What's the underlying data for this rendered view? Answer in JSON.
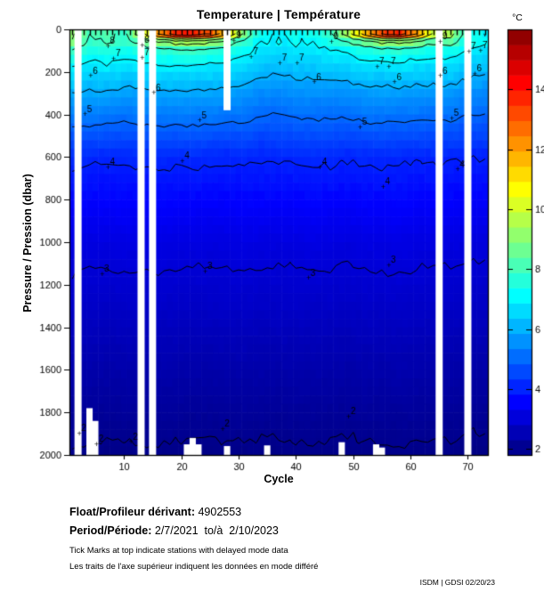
{
  "title": "Temperature | Température",
  "axes": {
    "x": {
      "label": "Cycle",
      "ticks": [
        10,
        20,
        30,
        40,
        50,
        60,
        70
      ],
      "range": [
        0.5,
        73.5
      ]
    },
    "y": {
      "label": "Pressure / Pression (dbar)",
      "ticks": [
        0,
        200,
        400,
        600,
        800,
        1000,
        1200,
        1400,
        1600,
        1800,
        2000
      ],
      "range": [
        0,
        2000
      ],
      "inverted": true
    }
  },
  "colorbar": {
    "unit_label": "°C",
    "ticks": [
      2,
      4,
      6,
      8,
      10,
      12,
      14
    ],
    "domain": [
      1.8,
      16.0
    ],
    "colormap": "jet",
    "blocks": 28
  },
  "footer": {
    "float_label": "Float/Profileur dérivant:",
    "float_value": " 4902553",
    "period_label": "Period/Période:",
    "period_value": " 2/7/2021  to/à  2/10/2023",
    "note_en": "Tick Marks at top indicate stations with delayed mode data",
    "note_fr": "Les traits de l'axe supérieur indiquent les données en mode différé",
    "credit": "ISDM | GDSI 02/20/23"
  },
  "chart_data": {
    "type": "heatmap",
    "title": "Temperature | Température",
    "xlabel": "Cycle",
    "ylabel": "Pressure / Pression (dbar)",
    "x_cycles": [
      1,
      4,
      7,
      10,
      13,
      16,
      19,
      22,
      25,
      28,
      31,
      34,
      37,
      40,
      43,
      46,
      49,
      52,
      55,
      58,
      61,
      64,
      67,
      70,
      73
    ],
    "y_pressures_dbar": [
      0,
      25,
      50,
      75,
      100,
      150,
      200,
      300,
      400,
      600,
      800,
      1000,
      1300,
      1600,
      2000
    ],
    "temperature_c": [
      [
        9.5,
        8.0,
        8.4,
        8.0,
        10.5,
        13.8,
        15.2,
        15.5,
        14.8,
        13.0,
        9.2,
        7.3,
        7.2,
        7.4,
        7.3,
        8.0,
        10.5,
        13.5,
        15.0,
        15.4,
        13.8,
        11.0,
        9.6,
        7.6,
        7.2
      ],
      [
        9.3,
        7.9,
        8.2,
        7.9,
        9.3,
        11.5,
        13.2,
        13.5,
        12.5,
        10.8,
        8.6,
        7.2,
        7.1,
        7.3,
        7.2,
        7.8,
        9.2,
        11.0,
        12.8,
        13.2,
        11.5,
        9.5,
        9.2,
        7.5,
        7.1
      ],
      [
        9.0,
        7.8,
        8.0,
        7.7,
        8.4,
        9.3,
        9.9,
        10.0,
        9.6,
        9.0,
        8.0,
        7.1,
        7.0,
        7.2,
        7.1,
        7.5,
        8.3,
        9.0,
        9.6,
        9.8,
        9.2,
        8.4,
        8.6,
        7.4,
        7.0
      ],
      [
        8.5,
        7.6,
        7.8,
        7.5,
        7.9,
        8.3,
        8.5,
        8.6,
        8.4,
        8.1,
        7.6,
        6.9,
        6.9,
        7.0,
        7.0,
        7.2,
        7.7,
        8.1,
        8.4,
        8.5,
        8.1,
        7.8,
        7.9,
        7.2,
        6.9
      ],
      [
        8.0,
        7.4,
        7.5,
        7.3,
        7.5,
        7.7,
        7.8,
        7.9,
        7.7,
        7.6,
        7.2,
        6.7,
        6.7,
        6.8,
        6.8,
        6.9,
        7.2,
        7.5,
        7.6,
        7.7,
        7.5,
        7.3,
        7.4,
        7.0,
        6.7
      ],
      [
        7.3,
        7.0,
        7.1,
        6.9,
        7.0,
        7.1,
        7.2,
        7.2,
        7.1,
        7.0,
        6.8,
        6.4,
        6.4,
        6.5,
        6.5,
        6.6,
        6.7,
        6.9,
        7.0,
        7.0,
        6.9,
        6.8,
        6.9,
        6.6,
        6.4
      ],
      [
        6.8,
        6.6,
        6.7,
        6.5,
        6.6,
        6.7,
        6.7,
        6.7,
        6.6,
        6.6,
        6.4,
        6.1,
        6.1,
        6.2,
        6.2,
        6.2,
        6.3,
        6.5,
        6.5,
        6.6,
        6.5,
        6.4,
        6.5,
        6.2,
        6.1
      ],
      [
        6.0,
        5.9,
        5.9,
        5.8,
        5.8,
        5.9,
        5.9,
        5.9,
        5.9,
        5.8,
        5.7,
        5.5,
        5.5,
        5.6,
        5.6,
        5.6,
        5.6,
        5.7,
        5.8,
        5.8,
        5.7,
        5.7,
        5.7,
        5.5,
        5.5
      ],
      [
        5.4,
        5.3,
        5.3,
        5.2,
        5.3,
        5.3,
        5.3,
        5.3,
        5.3,
        5.2,
        5.2,
        5.0,
        5.0,
        5.1,
        5.1,
        5.1,
        5.1,
        5.2,
        5.2,
        5.2,
        5.2,
        5.1,
        5.2,
        5.0,
        5.0
      ],
      [
        4.15,
        4.1,
        4.05,
        4.1,
        4.1,
        4.15,
        4.1,
        4.15,
        4.1,
        4.05,
        4.1,
        4.05,
        4.1,
        4.1,
        4.15,
        4.1,
        4.05,
        4.1,
        4.15,
        4.1,
        4.05,
        4.1,
        4.05,
        4.0,
        4.0
      ],
      [
        3.65,
        3.6,
        3.6,
        3.62,
        3.6,
        3.65,
        3.62,
        3.6,
        3.58,
        3.6,
        3.62,
        3.6,
        3.58,
        3.6,
        3.62,
        3.6,
        3.58,
        3.62,
        3.6,
        3.65,
        3.6,
        3.58,
        3.6,
        3.55,
        3.55
      ],
      [
        3.2,
        3.15,
        3.15,
        3.18,
        3.15,
        3.2,
        3.18,
        3.15,
        3.12,
        3.15,
        3.18,
        3.15,
        3.12,
        3.15,
        3.18,
        3.15,
        3.1,
        3.15,
        3.18,
        3.2,
        3.15,
        3.12,
        3.15,
        3.1,
        3.1
      ],
      [
        2.82,
        2.8,
        2.78,
        2.8,
        2.8,
        2.82,
        2.8,
        2.78,
        2.78,
        2.8,
        2.8,
        2.78,
        2.78,
        2.8,
        2.8,
        2.78,
        2.76,
        2.8,
        2.8,
        2.82,
        2.8,
        2.78,
        2.78,
        2.75,
        2.75
      ],
      [
        2.42,
        2.4,
        2.38,
        2.4,
        2.4,
        2.42,
        2.4,
        2.38,
        2.38,
        2.4,
        2.4,
        2.38,
        2.38,
        2.4,
        2.4,
        2.38,
        2.36,
        2.4,
        2.4,
        2.42,
        2.4,
        2.38,
        2.38,
        2.35,
        2.35
      ],
      [
        1.95,
        1.93,
        1.9,
        1.92,
        1.93,
        1.95,
        1.93,
        1.9,
        1.9,
        1.92,
        1.93,
        1.92,
        1.9,
        1.92,
        1.93,
        1.92,
        1.9,
        1.92,
        1.93,
        1.95,
        1.93,
        1.9,
        1.92,
        1.88,
        1.88
      ]
    ],
    "contour_levels": [
      2,
      3,
      4,
      5,
      6,
      7,
      8,
      9,
      10,
      11,
      12,
      13,
      14,
      15
    ],
    "contour_labels": [
      {
        "c": 8,
        "p": 60,
        "t": "8"
      },
      {
        "c": 5,
        "p": 200,
        "t": "6"
      },
      {
        "c": 9,
        "p": 120,
        "t": "7"
      },
      {
        "c": 4,
        "p": 380,
        "t": "5"
      },
      {
        "c": 8,
        "p": 630,
        "t": "4"
      },
      {
        "c": 7,
        "p": 1130,
        "t": "3"
      },
      {
        "c": 3,
        "p": 1880,
        "t": "2"
      },
      {
        "c": 6,
        "p": 1930,
        "t": "2"
      },
      {
        "c": 14,
        "p": 55,
        "t": "8"
      },
      {
        "c": 14,
        "p": 115,
        "t": "7"
      },
      {
        "c": 16,
        "p": 280,
        "t": "6"
      },
      {
        "c": 21,
        "p": 600,
        "t": "4"
      },
      {
        "c": 24,
        "p": 410,
        "t": "5"
      },
      {
        "c": 25,
        "p": 1120,
        "t": "3"
      },
      {
        "c": 12,
        "p": 1920,
        "t": "2"
      },
      {
        "c": 30,
        "p": 35,
        "t": "9"
      },
      {
        "c": 28,
        "p": 1860,
        "t": "2"
      },
      {
        "c": 33,
        "p": 110,
        "t": "7"
      },
      {
        "c": 38,
        "p": 140,
        "t": "7"
      },
      {
        "c": 41,
        "p": 140,
        "t": "7"
      },
      {
        "c": 44,
        "p": 230,
        "t": "6"
      },
      {
        "c": 45,
        "p": 630,
        "t": "4"
      },
      {
        "c": 43,
        "p": 1150,
        "t": "3"
      },
      {
        "c": 47,
        "p": 40,
        "t": "9"
      },
      {
        "c": 52,
        "p": 440,
        "t": "5"
      },
      {
        "c": 50,
        "p": 1800,
        "t": "2"
      },
      {
        "c": 55,
        "p": 155,
        "t": "7"
      },
      {
        "c": 57,
        "p": 155,
        "t": "7"
      },
      {
        "c": 58,
        "p": 230,
        "t": "6"
      },
      {
        "c": 56,
        "p": 720,
        "t": "4"
      },
      {
        "c": 57,
        "p": 1090,
        "t": "3"
      },
      {
        "c": 66,
        "p": 40,
        "t": "9"
      },
      {
        "c": 66,
        "p": 200,
        "t": "6"
      },
      {
        "c": 69,
        "p": 640,
        "t": "4"
      },
      {
        "c": 68,
        "p": 400,
        "t": "5"
      },
      {
        "c": 71,
        "p": 85,
        "t": "7"
      },
      {
        "c": 73,
        "p": 80,
        "t": "7"
      },
      {
        "c": 72,
        "p": 190,
        "t": "6"
      }
    ],
    "missing_cycles": [
      2,
      13,
      15,
      65,
      70
    ],
    "top_gap": {
      "cycle": 28,
      "from_dbar": 0,
      "to_dbar": 380
    },
    "shallow_profiles": [
      {
        "cycle": 4,
        "max_dbar": 1780
      },
      {
        "cycle": 5,
        "max_dbar": 1840
      },
      {
        "cycle": 21,
        "max_dbar": 1950
      },
      {
        "cycle": 22,
        "max_dbar": 1920
      },
      {
        "cycle": 23,
        "max_dbar": 1950
      },
      {
        "cycle": 28,
        "max_dbar": 1958
      },
      {
        "cycle": 35,
        "max_dbar": 1955
      },
      {
        "cycle": 48,
        "max_dbar": 1940
      },
      {
        "cycle": 54,
        "max_dbar": 1950
      },
      {
        "cycle": 55,
        "max_dbar": 1965
      }
    ],
    "delayed_mode_ticks": {
      "first": 1,
      "last": 73,
      "except": [
        2,
        13,
        15,
        65,
        70
      ]
    },
    "color_domain": [
      1.8,
      16.0
    ]
  }
}
